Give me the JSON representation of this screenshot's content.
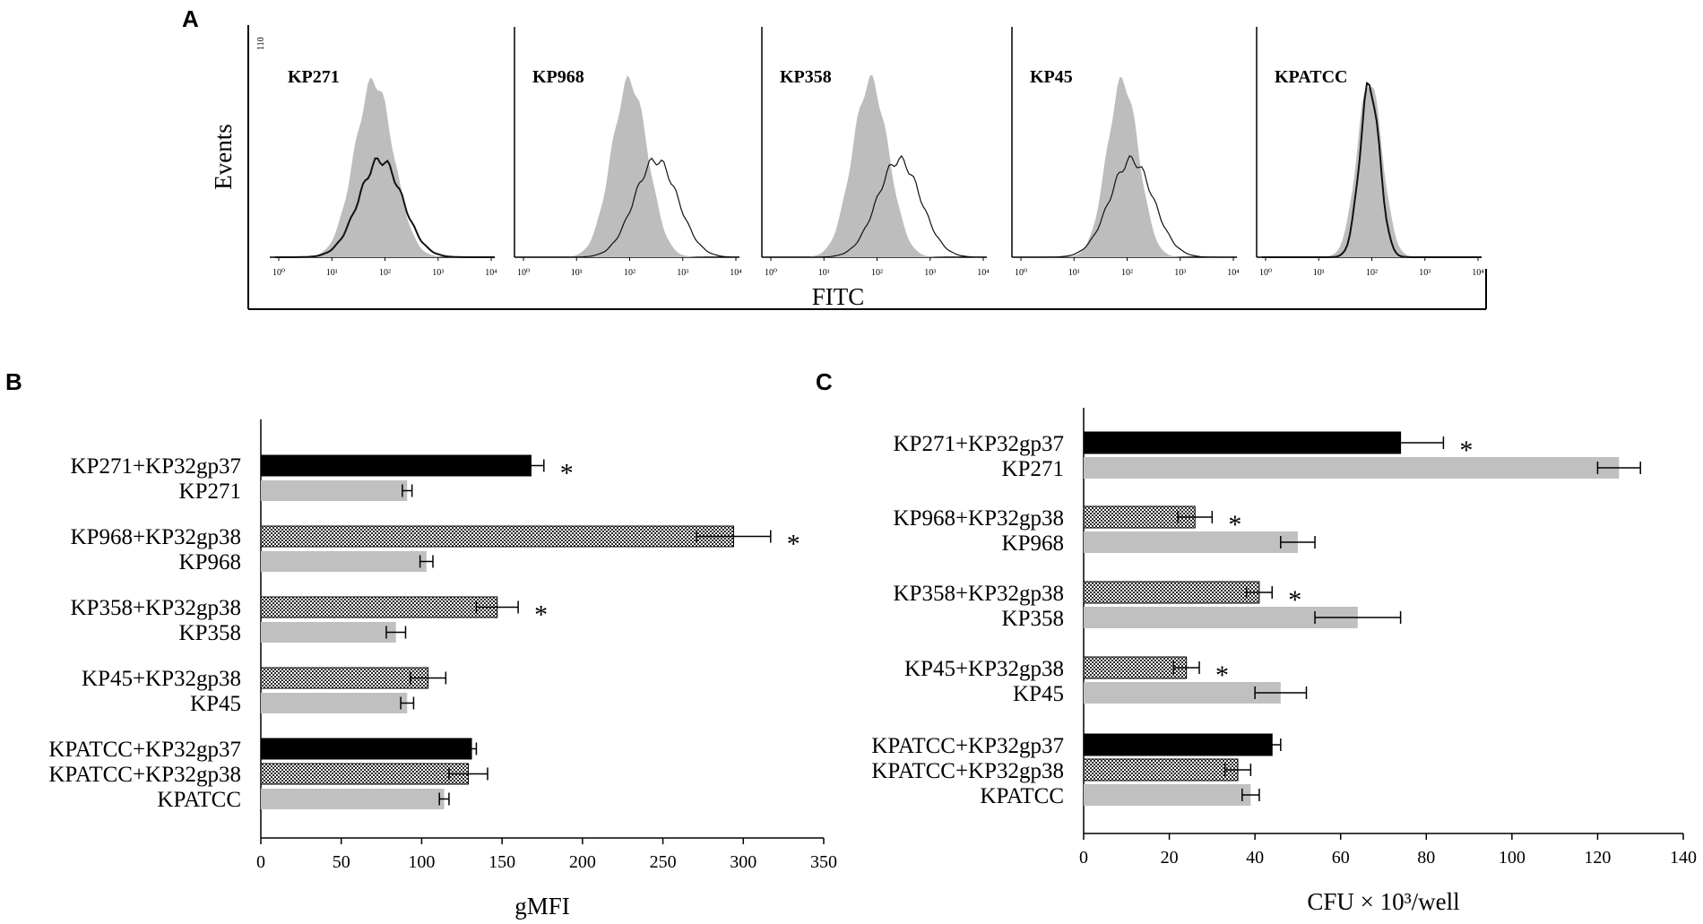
{
  "panels": {
    "a": {
      "letter": "A",
      "ylabel": "Events",
      "xlabel": "FITC",
      "ymax_label": "110",
      "x_ticks": [
        "10⁰",
        "10¹",
        "10²",
        "10³",
        "10⁴"
      ],
      "histograms": [
        {
          "label": "KP271"
        },
        {
          "label": "KP968"
        },
        {
          "label": "KP358"
        },
        {
          "label": "KP45"
        },
        {
          "label": "KPATCC"
        }
      ]
    },
    "b": {
      "letter": "B"
    },
    "c": {
      "letter": "C"
    }
  },
  "colors": {
    "gp37": "#000000",
    "gp38_pattern": "#3a3a3a",
    "control": "#c0c0c0",
    "hist_fill": "#bdbdbd"
  },
  "chart_data": [
    {
      "type": "bar",
      "panel": "B",
      "orientation": "horizontal",
      "xlabel": "gMFI",
      "xlim": [
        0,
        350
      ],
      "xticks": [
        0,
        50,
        100,
        150,
        200,
        250,
        300,
        350
      ],
      "groups": [
        {
          "bars": [
            {
              "label": "KP271+KP32gp37",
              "value": 168,
              "error": 8,
              "style": "gp37",
              "star": true
            },
            {
              "label": "KP271",
              "value": 91,
              "error": 3,
              "style": "control",
              "star": false
            }
          ]
        },
        {
          "bars": [
            {
              "label": "KP968+KP32gp38",
              "value": 294,
              "error": 23,
              "style": "gp38",
              "star": true
            },
            {
              "label": "KP968",
              "value": 103,
              "error": 4,
              "style": "control",
              "star": false
            }
          ]
        },
        {
          "bars": [
            {
              "label": "KP358+KP32gp38",
              "value": 147,
              "error": 13,
              "style": "gp38",
              "star": true
            },
            {
              "label": "KP358",
              "value": 84,
              "error": 6,
              "style": "control",
              "star": false
            }
          ]
        },
        {
          "bars": [
            {
              "label": "KP45+KP32gp38",
              "value": 104,
              "error": 11,
              "style": "gp38",
              "star": false
            },
            {
              "label": "KP45",
              "value": 91,
              "error": 4,
              "style": "control",
              "star": false
            }
          ]
        },
        {
          "bars": [
            {
              "label": "KPATCC+KP32gp37",
              "value": 131,
              "error": 3,
              "style": "gp37",
              "star": false
            },
            {
              "label": "KPATCC+KP32gp38",
              "value": 129,
              "error": 12,
              "style": "gp38",
              "star": false
            },
            {
              "label": "KPATCC",
              "value": 114,
              "error": 3,
              "style": "control",
              "star": false
            }
          ]
        }
      ]
    },
    {
      "type": "bar",
      "panel": "C",
      "orientation": "horizontal",
      "xlabel": "CFU × 10³/well",
      "xlim": [
        0,
        140
      ],
      "xticks": [
        0,
        20,
        40,
        60,
        80,
        100,
        120,
        140
      ],
      "groups": [
        {
          "bars": [
            {
              "label": "KP271+KP32gp37",
              "value": 74,
              "error": 10,
              "style": "gp37",
              "star": true
            },
            {
              "label": "KP271",
              "value": 125,
              "error": 5,
              "style": "control",
              "star": false
            }
          ]
        },
        {
          "bars": [
            {
              "label": "KP968+KP32gp38",
              "value": 26,
              "error": 4,
              "style": "gp38",
              "star": true
            },
            {
              "label": "KP968",
              "value": 50,
              "error": 4,
              "style": "control",
              "star": false
            }
          ]
        },
        {
          "bars": [
            {
              "label": "KP358+KP32gp38",
              "value": 41,
              "error": 3,
              "style": "gp38",
              "star": true
            },
            {
              "label": "KP358",
              "value": 64,
              "error": 10,
              "style": "control",
              "star": false
            }
          ]
        },
        {
          "bars": [
            {
              "label": "KP45+KP32gp38",
              "value": 24,
              "error": 3,
              "style": "gp38",
              "star": true
            },
            {
              "label": "KP45",
              "value": 46,
              "error": 6,
              "style": "control",
              "star": false
            }
          ]
        },
        {
          "bars": [
            {
              "label": "KPATCC+KP32gp37",
              "value": 44,
              "error": 2,
              "style": "gp37",
              "star": false
            },
            {
              "label": "KPATCC+KP32gp38",
              "value": 36,
              "error": 3,
              "style": "gp38",
              "star": false
            },
            {
              "label": "KPATCC",
              "value": 39,
              "error": 2,
              "style": "control",
              "star": false
            }
          ]
        }
      ]
    }
  ]
}
